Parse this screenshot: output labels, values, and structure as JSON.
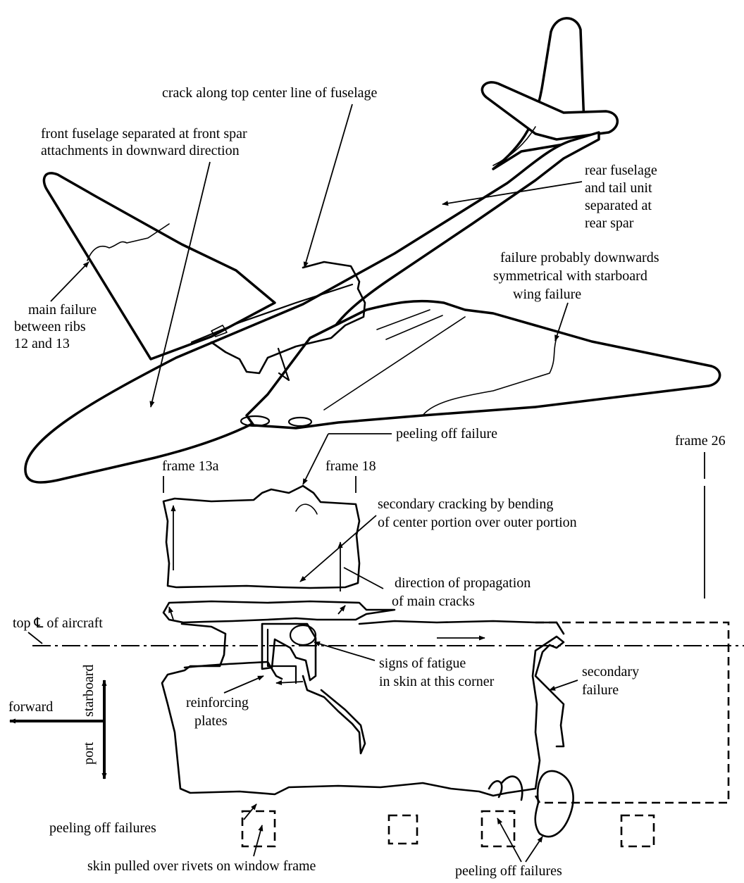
{
  "labels": {
    "crack_top": "crack along top center line of fuselage",
    "front_sep_1": "front fuselage separated at front spar",
    "front_sep_2": "attachments in downward direction",
    "rear_sep_1": "rear fuselage",
    "rear_sep_2": "and tail unit",
    "rear_sep_3": "separated at",
    "rear_sep_4": "rear spar",
    "failure_down_1": "failure probably downwards",
    "failure_down_2": "symmetrical with starboard",
    "failure_down_3": "wing failure",
    "main_failure_1": "main failure",
    "main_failure_2": "between ribs",
    "main_failure_3": "12 and 13",
    "peeling_top": "peeling off failure",
    "frame_26": "frame 26",
    "frame_13a": "frame 13a",
    "frame_18": "frame 18",
    "secondary_crack_1": "secondary cracking by bending",
    "secondary_crack_2": "of center portion over outer portion",
    "propagation_1": "direction of propagation",
    "propagation_2": "of main cracks",
    "top_cl": "top ℄ of aircraft",
    "fatigue_1": "signs of fatigue",
    "fatigue_2": "in skin at this corner",
    "secondary_failure_1": "secondary",
    "secondary_failure_2": "failure",
    "reinforcing_1": "reinforcing",
    "reinforcing_2": "plates",
    "forward": "forward",
    "starboard": "starboard",
    "port": "port",
    "peeling_left": "peeling off failures",
    "skin_pulled": "skin pulled over rivets on window frame",
    "peeling_bottom": "peeling off failures"
  }
}
